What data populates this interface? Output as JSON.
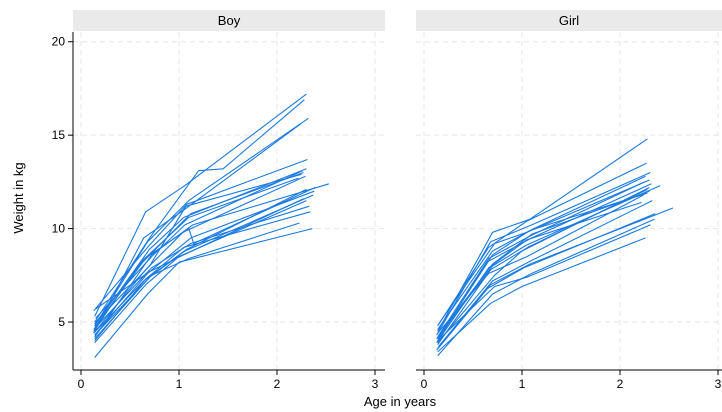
{
  "chart_data": {
    "type": "line",
    "xlabel": "Age in years",
    "ylabel": "Weight in kg",
    "xlim": [
      0,
      3
    ],
    "ylim": [
      3,
      20.5
    ],
    "xticks": [
      0,
      1,
      2,
      3
    ],
    "yticks": [
      5,
      10,
      15,
      20
    ],
    "grid": true,
    "line_color": "#1a7adf",
    "strip_color": "#eaeaea",
    "panels": [
      {
        "title": "Boy",
        "series": [
          {
            "x": [
              0.14,
              0.66,
              1.06,
              2.3
            ],
            "y": [
              5.3,
              10.9,
              12.3,
              17.2
            ]
          },
          {
            "x": [
              0.14,
              0.7,
              1.2,
              1.45,
              2.28
            ],
            "y": [
              5.0,
              9.5,
              13.1,
              13.2,
              16.9
            ]
          },
          {
            "x": [
              0.14,
              0.68,
              1.1,
              2.32
            ],
            "y": [
              4.8,
              9.3,
              11.5,
              15.9
            ]
          },
          {
            "x": [
              0.14,
              0.64,
              1.05,
              2.24
            ],
            "y": [
              4.5,
              9.5,
              11.0,
              15.6
            ]
          },
          {
            "x": [
              0.13,
              0.68,
              1.08,
              2.31
            ],
            "y": [
              5.6,
              9.0,
              11.3,
              13.7
            ]
          },
          {
            "x": [
              0.15,
              0.72,
              1.06,
              2.26
            ],
            "y": [
              5.2,
              8.5,
              10.2,
              13.1
            ]
          },
          {
            "x": [
              0.14,
              0.63,
              1.12,
              2.27
            ],
            "y": [
              4.7,
              8.2,
              10.8,
              13.0
            ]
          },
          {
            "x": [
              0.15,
              0.7,
              1.07,
              2.25
            ],
            "y": [
              5.0,
              8.0,
              11.2,
              12.9
            ]
          },
          {
            "x": [
              0.13,
              0.66,
              1.04,
              2.29
            ],
            "y": [
              4.4,
              7.8,
              9.8,
              12.8
            ]
          },
          {
            "x": [
              0.14,
              0.72,
              1.14,
              2.53
            ],
            "y": [
              4.2,
              8.6,
              10.2,
              12.4
            ]
          },
          {
            "x": [
              0.14,
              0.65,
              1.1,
              2.22
            ],
            "y": [
              4.9,
              8.4,
              10.6,
              12.7
            ]
          },
          {
            "x": [
              0.13,
              0.62,
              1.1,
              1.15,
              2.39
            ],
            "y": [
              4.5,
              8.3,
              10.0,
              9.2,
              12.2
            ]
          },
          {
            "x": [
              0.14,
              0.68,
              1.12,
              2.38
            ],
            "y": [
              4.3,
              7.6,
              9.5,
              12.0
            ]
          },
          {
            "x": [
              0.14,
              0.7,
              1.06,
              2.37
            ],
            "y": [
              4.1,
              7.4,
              8.8,
              11.8
            ]
          },
          {
            "x": [
              0.14,
              0.66,
              1.0,
              2.3
            ],
            "y": [
              3.9,
              7.0,
              8.5,
              11.5
            ]
          },
          {
            "x": [
              0.13,
              0.72,
              1.12,
              2.33
            ],
            "y": [
              4.6,
              7.9,
              9.2,
              11.2
            ]
          },
          {
            "x": [
              0.14,
              0.66,
              1.05,
              2.34
            ],
            "y": [
              4.0,
              7.3,
              9.0,
              10.9
            ]
          },
          {
            "x": [
              0.14,
              0.72,
              1.1,
              2.23
            ],
            "y": [
              4.3,
              7.5,
              8.4,
              10.3
            ]
          },
          {
            "x": [
              0.14,
              0.68,
              1.0,
              2.36
            ],
            "y": [
              3.1,
              6.5,
              8.2,
              10.0
            ]
          },
          {
            "x": [
              0.15,
              0.7,
              1.05,
              2.27
            ],
            "y": [
              5.7,
              7.7,
              8.6,
              11.6
            ]
          },
          {
            "x": [
              0.13,
              0.64,
              1.08,
              2.3
            ],
            "y": [
              4.4,
              7.2,
              8.9,
              12.1
            ]
          },
          {
            "x": [
              0.14,
              0.7,
              1.05,
              2.3
            ],
            "y": [
              4.8,
              8.9,
              10.6,
              13.2
            ]
          }
        ]
      },
      {
        "title": "Girl",
        "series": [
          {
            "x": [
              0.14,
              0.7,
              1.08,
              2.28
            ],
            "y": [
              4.5,
              9.8,
              10.5,
              14.8
            ]
          },
          {
            "x": [
              0.14,
              0.66,
              1.05,
              2.27
            ],
            "y": [
              4.8,
              9.0,
              10.4,
              13.5
            ]
          },
          {
            "x": [
              0.13,
              0.68,
              1.1,
              2.31
            ],
            "y": [
              4.3,
              9.3,
              10.2,
              13.0
            ]
          },
          {
            "x": [
              0.14,
              0.7,
              1.12,
              2.26
            ],
            "y": [
              4.6,
              8.8,
              10.0,
              12.8
            ]
          },
          {
            "x": [
              0.15,
              0.72,
              1.05,
              2.3
            ],
            "y": [
              4.9,
              9.2,
              9.8,
              12.6
            ]
          },
          {
            "x": [
              0.14,
              0.66,
              1.08,
              2.25
            ],
            "y": [
              4.2,
              8.4,
              9.6,
              12.5
            ]
          },
          {
            "x": [
              0.14,
              0.64,
              1.1,
              2.32
            ],
            "y": [
              4.0,
              8.2,
              9.5,
              12.4
            ]
          },
          {
            "x": [
              0.13,
              0.7,
              1.04,
              2.41
            ],
            "y": [
              4.1,
              8.0,
              9.1,
              12.3
            ]
          },
          {
            "x": [
              0.14,
              0.68,
              1.06,
              2.28
            ],
            "y": [
              3.8,
              7.8,
              9.0,
              12.1
            ]
          },
          {
            "x": [
              0.14,
              0.72,
              1.0,
              2.3
            ],
            "y": [
              3.9,
              7.5,
              8.8,
              12.2
            ]
          },
          {
            "x": [
              0.14,
              0.66,
              1.05,
              2.24
            ],
            "y": [
              4.4,
              7.6,
              8.5,
              11.8
            ]
          },
          {
            "x": [
              0.15,
              0.7,
              1.1,
              2.33
            ],
            "y": [
              3.7,
              7.2,
              8.3,
              11.5
            ]
          },
          {
            "x": [
              0.14,
              0.68,
              1.08,
              2.54
            ],
            "y": [
              3.6,
              7.0,
              8.1,
              11.1
            ]
          },
          {
            "x": [
              0.13,
              0.65,
              1.02,
              2.36
            ],
            "y": [
              3.5,
              6.8,
              7.9,
              10.8
            ]
          },
          {
            "x": [
              0.14,
              0.7,
              1.1,
              2.35
            ],
            "y": [
              3.2,
              6.5,
              7.6,
              10.5
            ]
          },
          {
            "x": [
              0.14,
              0.72,
              1.05,
              2.31
            ],
            "y": [
              4.0,
              6.9,
              7.4,
              10.2
            ]
          },
          {
            "x": [
              0.14,
              0.68,
              1.0,
              2.26
            ],
            "y": [
              3.4,
              6.0,
              6.9,
              9.5
            ]
          },
          {
            "x": [
              0.14,
              0.7,
              1.08,
              2.28
            ],
            "y": [
              4.1,
              8.6,
              9.9,
              11.9
            ]
          },
          {
            "x": [
              0.13,
              0.66,
              1.05,
              2.22
            ],
            "y": [
              3.9,
              7.9,
              9.4,
              11.4
            ]
          },
          {
            "x": [
              0.15,
              0.7,
              1.1,
              2.3
            ],
            "y": [
              4.3,
              8.1,
              9.7,
              12.0
            ]
          }
        ]
      }
    ]
  }
}
